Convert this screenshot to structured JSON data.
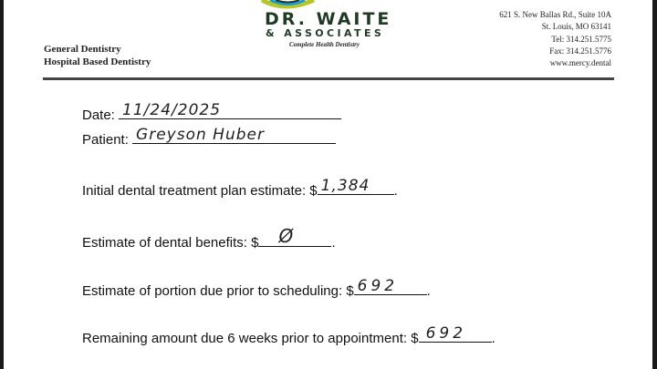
{
  "letterhead": {
    "brand_line1": "DR. WAITE",
    "brand_line2": "& ASSOCIATES",
    "tagline": "Complete Health Dentistry",
    "services": [
      "General Dentistry",
      "Hospital Based Dentistry"
    ],
    "address": [
      "621 S. New Ballas Rd., Suite 10A",
      "St. Louis, MO 63141",
      "Tel: 314.251.5775",
      "Fax: 314.251.5776",
      "www.mercy.dental"
    ],
    "colors": {
      "brand_green": "#1f3b22",
      "logo_yellow": "#b5c726",
      "logo_blue": "#1d9ad6"
    }
  },
  "form": {
    "date_label": "Date:",
    "date_value": "11/24/2025",
    "patient_label": "Patient:",
    "patient_value": "Greyson Huber",
    "initial_label": "Initial dental treatment plan estimate: $",
    "initial_value": "1,384",
    "benefits_label": "Estimate of dental benefits: $",
    "benefits_value": "Ø",
    "portion_label": "Estimate of portion due prior to scheduling: $",
    "portion_value": "692",
    "remaining_label": "Remaining amount due 6 weeks prior to appointment: $",
    "remaining_value": "692",
    "period": "."
  }
}
